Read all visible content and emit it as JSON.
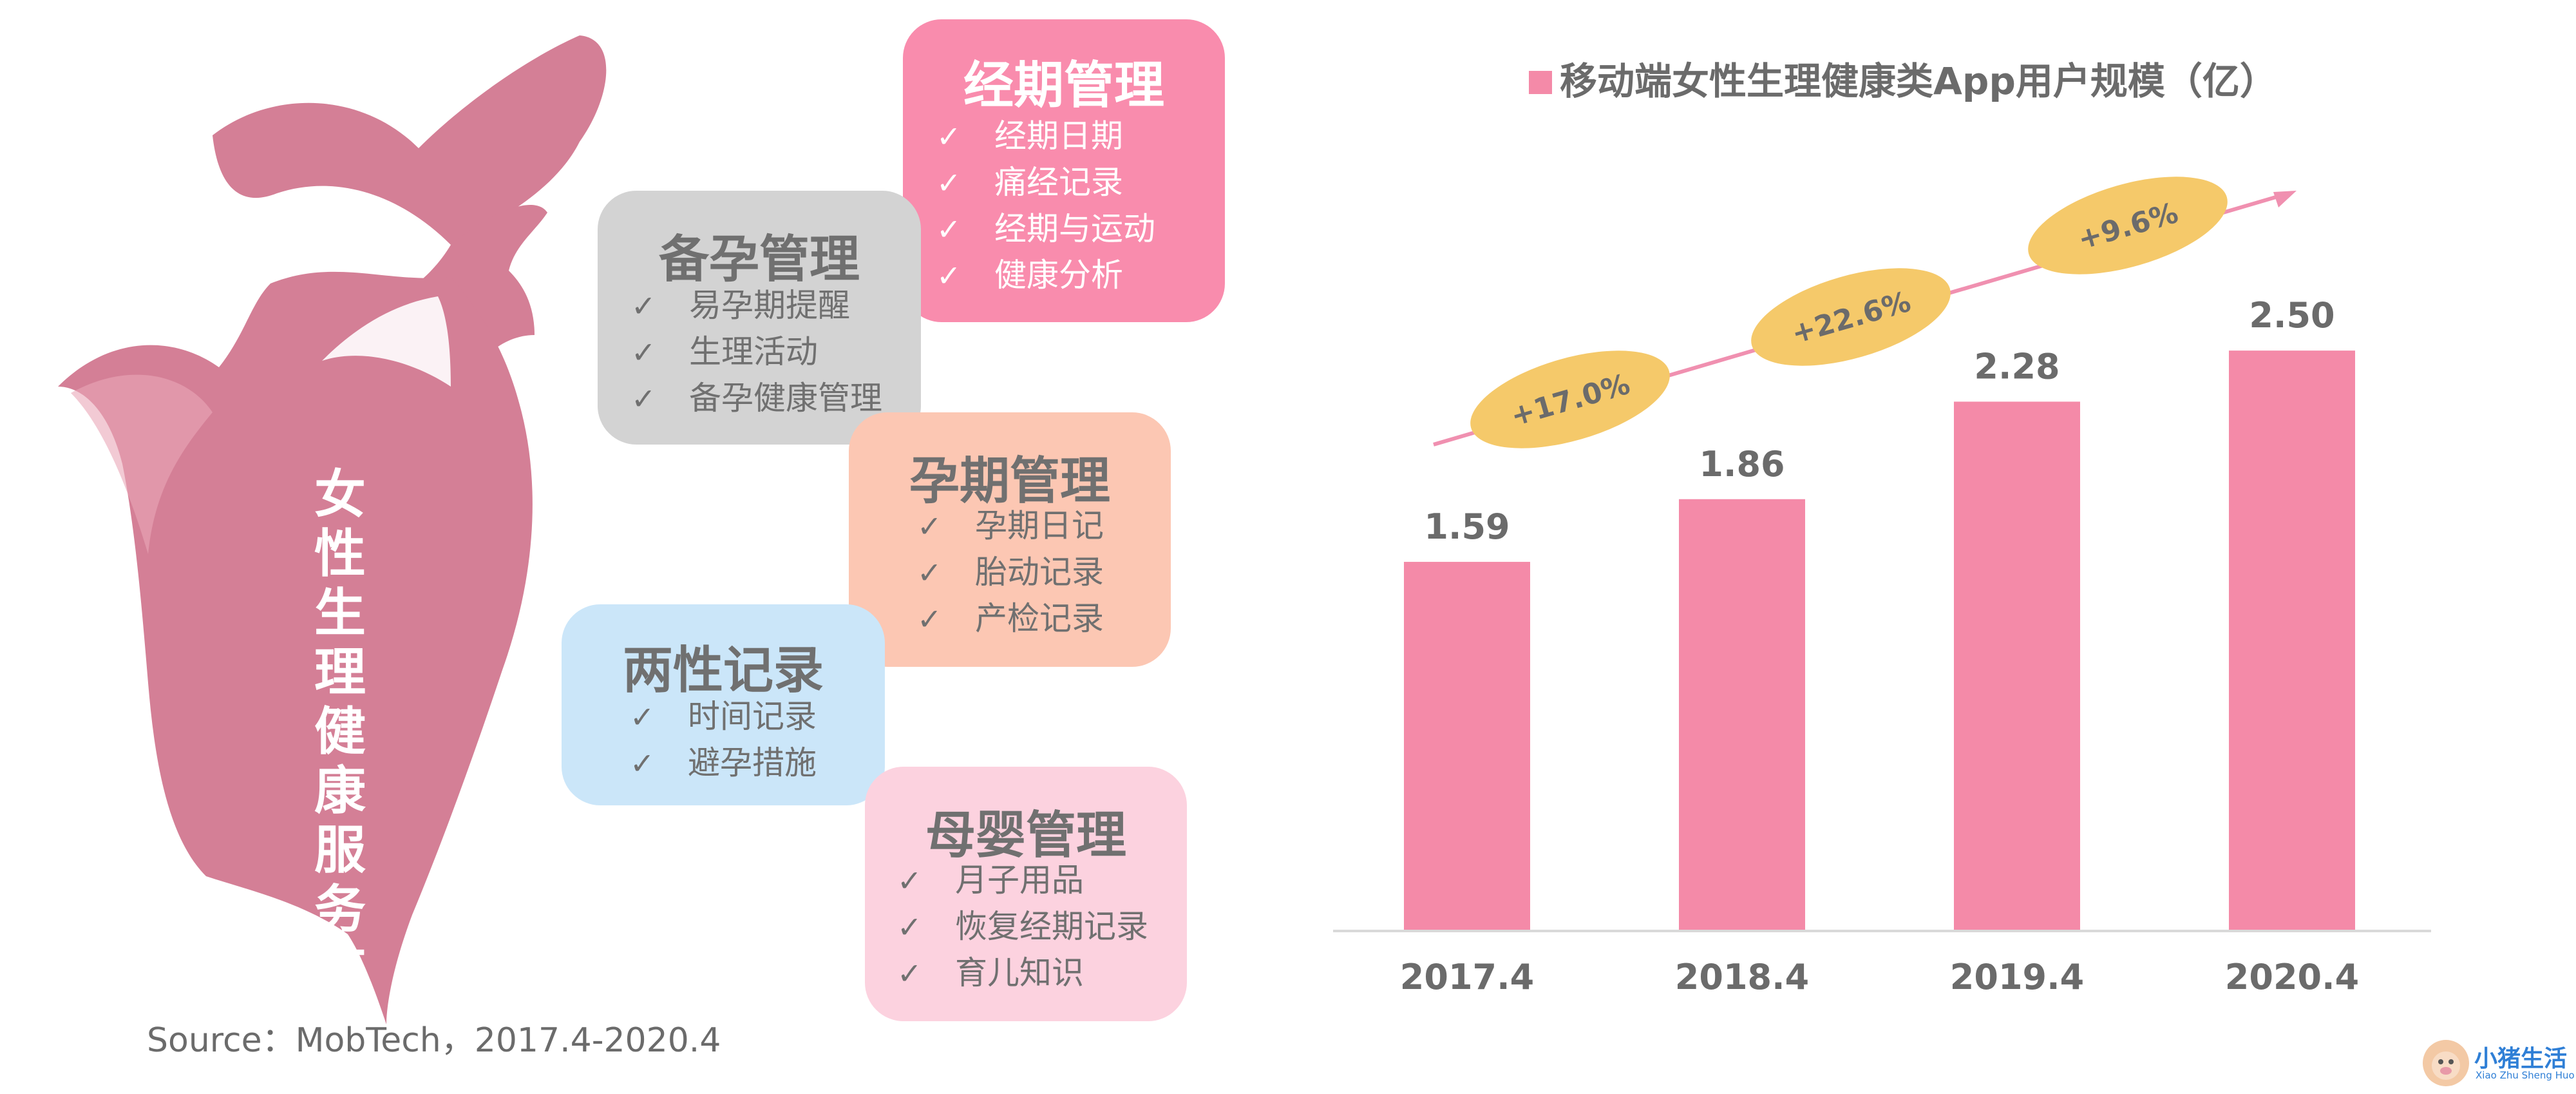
{
  "colors": {
    "bar": "#f48aa8",
    "figure": "#d47f96",
    "pill": "#f5c96a",
    "arrow": "#f090b0",
    "title_square": "#f48aa8"
  },
  "figure": {
    "title": "女性生理健康服务市场"
  },
  "cards": [
    {
      "id": "menstrual",
      "title": "经期管理",
      "items": [
        "经期日期",
        "痛经记录",
        "经期与运动",
        "健康分析"
      ],
      "bg": "#f98cad",
      "title_color": "#ffffff",
      "text_color": "#ffffff"
    },
    {
      "id": "conception",
      "title": "备孕管理",
      "items": [
        "易孕期提醒",
        "生理活动",
        "备孕健康管理"
      ],
      "bg": "#d3d3d3",
      "title_color": "#707070",
      "text_color": "#707070"
    },
    {
      "id": "pregnancy",
      "title": "孕期管理",
      "items": [
        "孕期日记",
        "胎动记录",
        "产检记录"
      ],
      "bg": "#fcc7b3",
      "title_color": "#707070",
      "text_color": "#707070"
    },
    {
      "id": "sexual",
      "title": "两性记录",
      "items": [
        "时间记录",
        "避孕措施"
      ],
      "bg": "#cbe6f9",
      "title_color": "#707070",
      "text_color": "#707070"
    },
    {
      "id": "maternal",
      "title": "母婴管理",
      "items": [
        "月子用品",
        "恢复经期记录",
        "育儿知识"
      ],
      "bg": "#fcd2df",
      "title_color": "#707070",
      "text_color": "#707070"
    }
  ],
  "check_mark": "✓",
  "source": "Source：MobTech，2017.4-2020.4",
  "logo": {
    "name": "小猪生活",
    "sub": "Xiao Zhu Sheng Huo"
  },
  "chart_data": {
    "type": "bar",
    "title": "移动端女性生理健康类App用户规模（亿）",
    "categories": [
      "2017.4",
      "2018.4",
      "2019.4",
      "2020.4"
    ],
    "values": [
      1.59,
      1.86,
      2.28,
      2.5
    ],
    "value_labels": [
      "1.59",
      "1.86",
      "2.28",
      "2.50"
    ],
    "growth_labels": [
      "+17.0%",
      "+22.6%",
      "+9.6%"
    ],
    "ylim": [
      0,
      2.9
    ],
    "grid": false,
    "legend": "top"
  }
}
